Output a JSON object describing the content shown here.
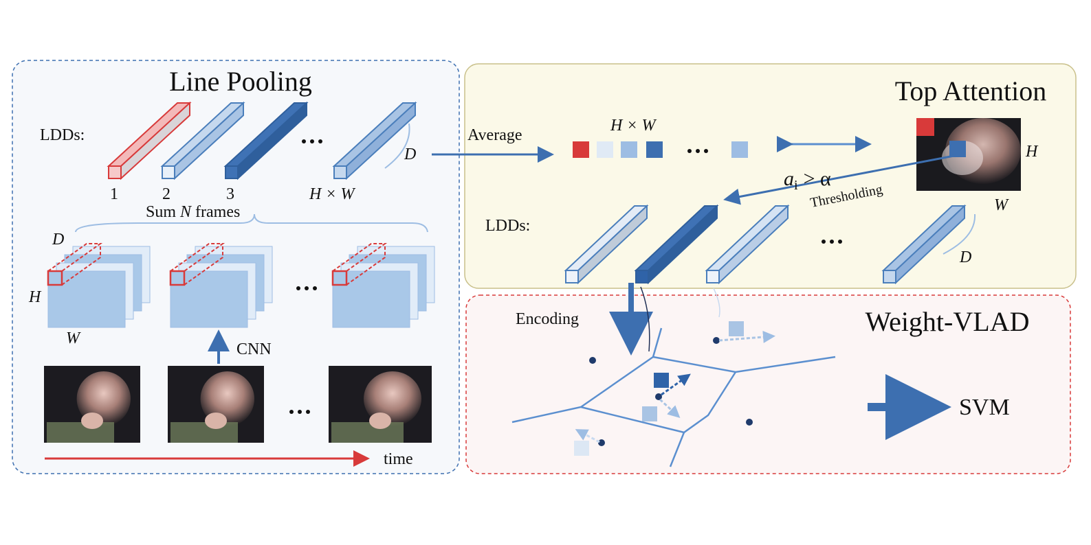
{
  "panels": {
    "line_pooling": {
      "title": "Line Pooling",
      "ldds_label": "LDDs:",
      "bar_labels": [
        "1",
        "2",
        "3",
        "H × W"
      ],
      "depth_label": "D",
      "sum_label": {
        "before": "Sum",
        "variable": "N",
        "after": "frames"
      },
      "map_labels": {
        "depth": "D",
        "height": "H",
        "width": "W"
      },
      "cnn_label": "CNN",
      "time_label": "time"
    },
    "top_attention": {
      "title": "Top Attention",
      "average_label": "Average",
      "grid_label": "H × W",
      "threshold_formula": {
        "base": "a",
        "subscript": "i",
        "relation": "> α"
      },
      "threshold_label": "Thresholding",
      "image_labels": {
        "height": "H",
        "width": "W"
      },
      "ldds_label": "LDDs:",
      "depth_label": "D"
    },
    "weight_vlad": {
      "title": "Weight-VLAD",
      "encoding_label": "Encoding",
      "output_label": "SVM"
    }
  }
}
